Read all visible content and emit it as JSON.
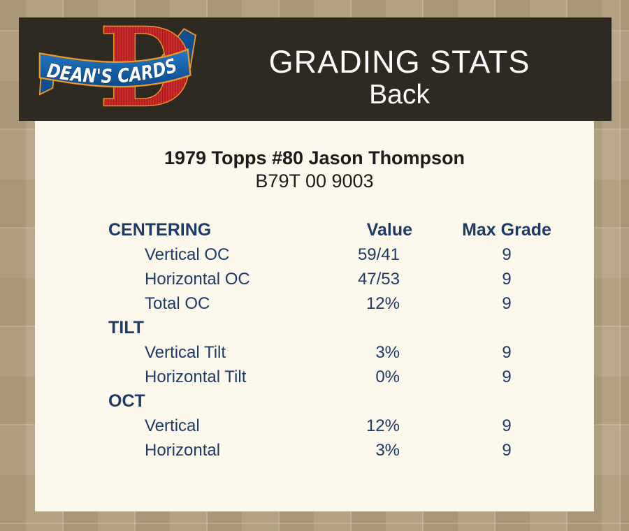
{
  "header": {
    "logo": {
      "letter": "D",
      "banner_text": "DEAN'S CARDS"
    },
    "title": "GRADING STATS",
    "subtitle": "Back"
  },
  "card": {
    "title": "1979 Topps #80 Jason Thompson",
    "id": "B79T 00 9003"
  },
  "stats": {
    "columns": {
      "section": "CENTERING",
      "value": "Value",
      "max_grade": "Max Grade"
    },
    "rows": [
      {
        "type": "data",
        "label": "Vertical OC",
        "value": "59/41",
        "max_grade": "9"
      },
      {
        "type": "data",
        "label": "Horizontal OC",
        "value": "47/53",
        "max_grade": "9"
      },
      {
        "type": "data",
        "label": "Total OC",
        "value": "12%",
        "max_grade": "9"
      },
      {
        "type": "section",
        "label": "TILT",
        "value": "",
        "max_grade": ""
      },
      {
        "type": "data",
        "label": "Vertical Tilt",
        "value": "3%",
        "max_grade": "9"
      },
      {
        "type": "data",
        "label": "Horizontal Tilt",
        "value": "0%",
        "max_grade": "9"
      },
      {
        "type": "section",
        "label": "OCT",
        "value": "",
        "max_grade": ""
      },
      {
        "type": "data",
        "label": "Vertical",
        "value": "12%",
        "max_grade": "9"
      },
      {
        "type": "data",
        "label": "Horizontal",
        "value": "3%",
        "max_grade": "9"
      }
    ]
  },
  "colors": {
    "page_background": "#b3a284",
    "header_background": "#2e2a21",
    "panel_background": "#fdf8ec",
    "table_text_navy": "#1e3a66",
    "logo_red": "#cf2b2b",
    "logo_blue": "#0e4f92",
    "logo_gold": "#ef9722"
  }
}
